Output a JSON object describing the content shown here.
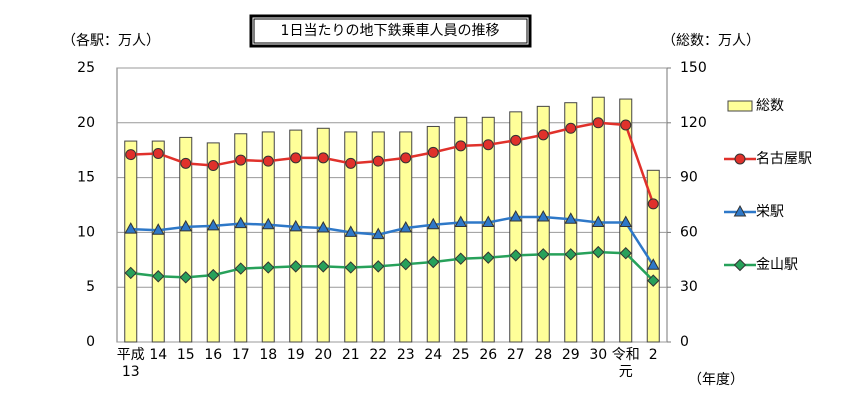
{
  "chart_data": {
    "type": "combo",
    "title": "1日当たりの地下鉄乗車人員の推移",
    "y_label": "（各駅：万人）",
    "y2_label": "（総数：万人）",
    "x_label": "（年度）",
    "categories": [
      "平成\n13",
      "14",
      "15",
      "16",
      "17",
      "18",
      "19",
      "20",
      "21",
      "22",
      "23",
      "24",
      "25",
      "26",
      "27",
      "28",
      "29",
      "30",
      "令和\n元",
      "2"
    ],
    "ylim": [
      0,
      25
    ],
    "yticks": [
      0,
      5,
      10,
      15,
      20,
      25
    ],
    "y2lim": [
      0,
      150
    ],
    "y2ticks": [
      0,
      30,
      60,
      90,
      120,
      150
    ],
    "grid": true,
    "legend": "right",
    "series": [
      {
        "name": "総数",
        "type": "bar",
        "axis": "y2",
        "color": "#ffff99",
        "values": [
          110,
          110,
          112,
          109,
          114,
          115,
          116,
          117,
          115,
          115,
          115,
          118,
          123,
          123,
          126,
          129,
          131,
          134,
          133,
          94
        ]
      },
      {
        "name": "名古屋駅",
        "type": "line",
        "marker": "circle",
        "color": "#e0312b",
        "values": [
          17.1,
          17.2,
          16.3,
          16.1,
          16.6,
          16.5,
          16.8,
          16.8,
          16.3,
          16.5,
          16.8,
          17.3,
          17.9,
          18.0,
          18.4,
          18.9,
          19.5,
          20.0,
          19.8,
          12.6
        ]
      },
      {
        "name": "栄駅",
        "type": "line",
        "marker": "triangle",
        "color": "#2e78c8",
        "values": [
          10.3,
          10.2,
          10.5,
          10.6,
          10.8,
          10.7,
          10.5,
          10.4,
          10.0,
          9.8,
          10.4,
          10.7,
          10.9,
          10.9,
          11.4,
          11.4,
          11.2,
          10.9,
          10.9,
          7.0
        ]
      },
      {
        "name": "金山駅",
        "type": "line",
        "marker": "diamond",
        "color": "#27a15a",
        "values": [
          6.3,
          6.0,
          5.9,
          6.1,
          6.7,
          6.8,
          6.9,
          6.9,
          6.8,
          6.9,
          7.1,
          7.3,
          7.6,
          7.7,
          7.9,
          8.0,
          8.0,
          8.2,
          8.1,
          5.6
        ]
      }
    ]
  }
}
